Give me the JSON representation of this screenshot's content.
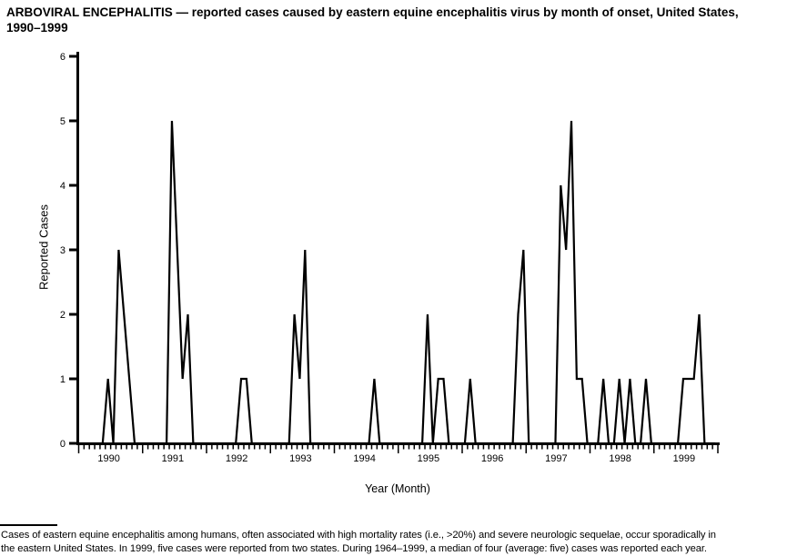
{
  "figure": {
    "title_lines": [
      "ARBOVIRAL ENCEPHALITIS — reported cases caused by eastern equine encephalitis virus by month of onset, United States,",
      "1990–1999"
    ],
    "footnote_lines": [
      "Cases of eastern equine encephalitis among humans, often associated with high mortality rates (i.e., >20%) and severe neurologic sequelae, occur sporadically in",
      "the eastern United States. In 1999, five cases were reported from two states. During 1964–1999, a median of four (average: five) cases was reported each year."
    ]
  },
  "chart_data": {
    "type": "line",
    "title": "ARBOVIRAL ENCEPHALITIS — reported cases caused by eastern equine encephalitis virus by month of onset, United States, 1990–1999",
    "xlabel": "Year (Month)",
    "ylabel": "Reported Cases",
    "ylim": [
      0,
      6
    ],
    "yticks": [
      0,
      1,
      2,
      3,
      4,
      5,
      6
    ],
    "x_resolution": "monthly",
    "years": [
      "1990",
      "1991",
      "1992",
      "1993",
      "1994",
      "1995",
      "1996",
      "1997",
      "1998",
      "1999"
    ],
    "grid": false,
    "legend": "none",
    "line_color": "#000000",
    "background_color": "#ffffff",
    "series": [
      {
        "name": "Reported Cases",
        "values": [
          0,
          0,
          0,
          0,
          0,
          1,
          0,
          3,
          2,
          1,
          0,
          0,
          0,
          0,
          0,
          0,
          0,
          5,
          3,
          1,
          2,
          0,
          0,
          0,
          0,
          0,
          0,
          0,
          0,
          0,
          1,
          1,
          0,
          0,
          0,
          0,
          0,
          0,
          0,
          0,
          2,
          1,
          3,
          0,
          0,
          0,
          0,
          0,
          0,
          0,
          0,
          0,
          0,
          0,
          0,
          1,
          0,
          0,
          0,
          0,
          0,
          0,
          0,
          0,
          0,
          2,
          0,
          1,
          1,
          0,
          0,
          0,
          0,
          1,
          0,
          0,
          0,
          0,
          0,
          0,
          0,
          0,
          2,
          3,
          0,
          0,
          0,
          0,
          0,
          0,
          4,
          3,
          5,
          1,
          1,
          0,
          0,
          0,
          1,
          0,
          0,
          1,
          0,
          1,
          0,
          0,
          1,
          0,
          0,
          0,
          0,
          0,
          0,
          1,
          1,
          1,
          2,
          0,
          0,
          0
        ]
      }
    ]
  }
}
